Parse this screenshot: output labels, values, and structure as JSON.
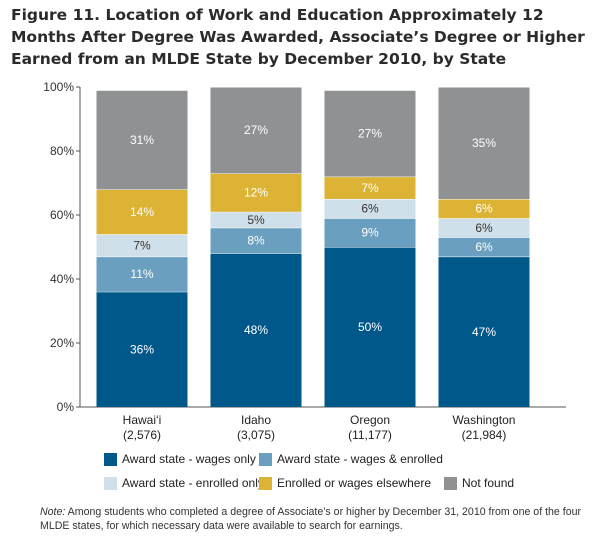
{
  "title_lines": [
    "Figure 11. Location of Work and Education Approximately 12",
    "Months After Degree Was Awarded, Associate’s Degree or Higher",
    "Earned from an MLDE State by December 2010, by State"
  ],
  "chart_data": {
    "type": "bar",
    "stacked": true,
    "categories": [
      "Hawai‘i",
      "Idaho",
      "Oregon",
      "Washington"
    ],
    "category_sublabels": [
      "(2,576)",
      "(3,075)",
      "(11,177)",
      "(21,984)"
    ],
    "ylim": [
      0,
      100
    ],
    "yticks": [
      "0%",
      "20%",
      "40%",
      "60%",
      "80%",
      "100%"
    ],
    "series": [
      {
        "name": "Award state - wages only",
        "color": "#00578a",
        "label_color": "#ffffff",
        "values": [
          36,
          48,
          50,
          47
        ],
        "labels": [
          "36%",
          "48%",
          "50%",
          "47%"
        ]
      },
      {
        "name": "Award state - wages & enrolled",
        "color": "#6a9fc0",
        "label_color": "#ffffff",
        "values": [
          11,
          8,
          9,
          6
        ],
        "labels": [
          "11%",
          "8%",
          "9%",
          "6%"
        ]
      },
      {
        "name": "Award state - enrolled only",
        "color": "#cfe0ea",
        "label_color": "#333333",
        "values": [
          7,
          5,
          6,
          6
        ],
        "labels": [
          "7%",
          "5%",
          "6%",
          "6%"
        ]
      },
      {
        "name": "Enrolled or wages elsewhere",
        "color": "#dcb334",
        "label_color": "#ffffff",
        "values": [
          14,
          12,
          7,
          6
        ],
        "labels": [
          "14%",
          "12%",
          "7%",
          "6%"
        ]
      },
      {
        "name": "Not found",
        "color": "#8f9193",
        "label_color": "#ffffff",
        "values": [
          31,
          27,
          27,
          35
        ],
        "labels": [
          "31%",
          "27%",
          "27%",
          "35%"
        ]
      }
    ]
  },
  "note": {
    "label": "Note:",
    "text": " Among students who completed a degree of Associate’s or higher by December 31, 2010 from one of the four MLDE states, for which necessary data were available to search for earnings."
  }
}
